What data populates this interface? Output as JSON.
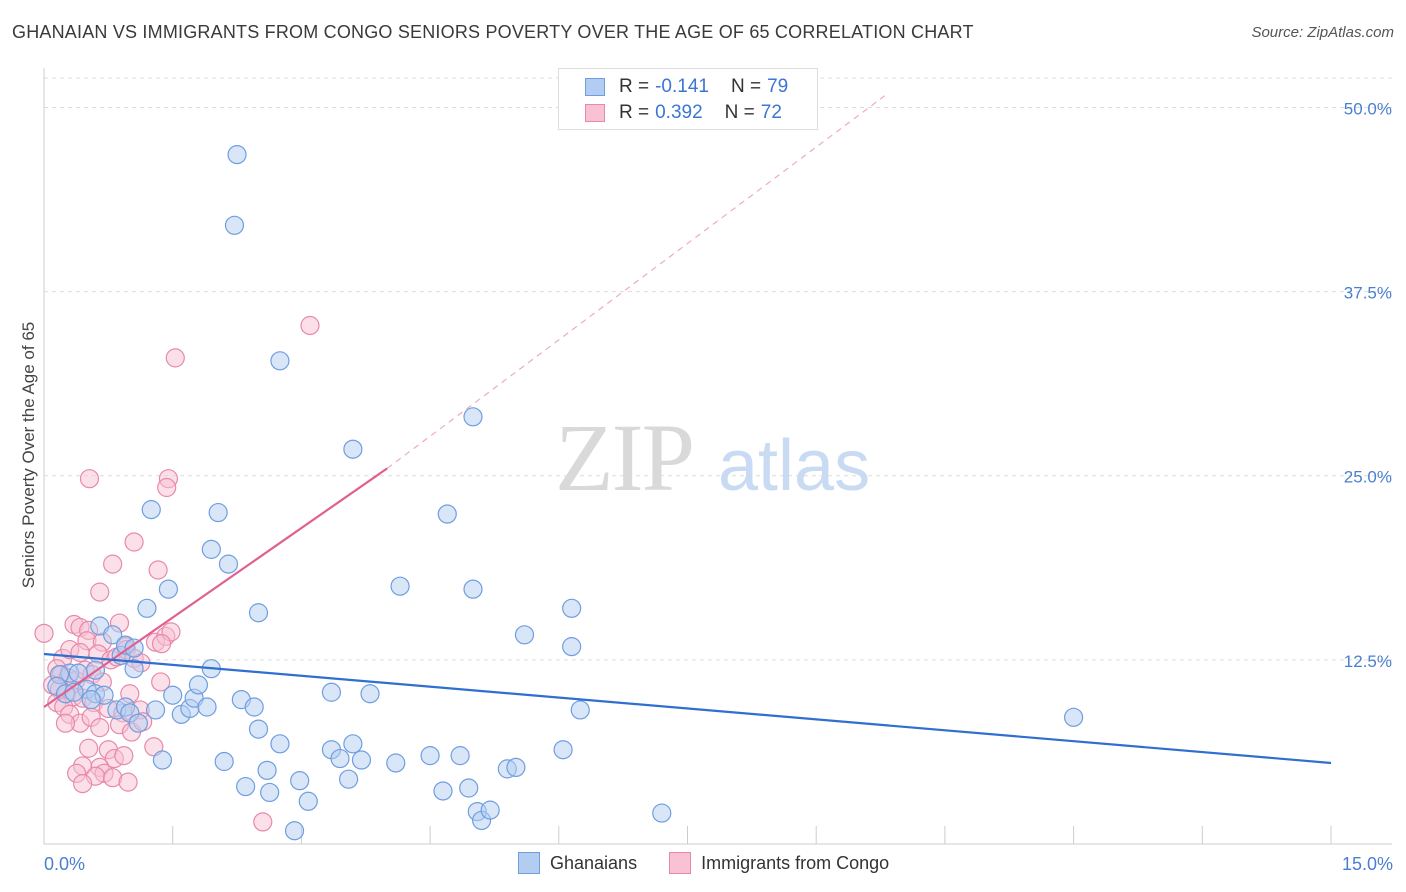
{
  "title": "GHANAIAN VS IMMIGRANTS FROM CONGO SENIORS POVERTY OVER THE AGE OF 65 CORRELATION CHART",
  "source": "Source: ZipAtlas.com",
  "watermark": {
    "zip": "ZIP",
    "atlas": "atlas"
  },
  "legend": {
    "rows": [
      {
        "r_label": "R =",
        "r_value": "-0.141",
        "n_label": "N =",
        "n_value": "79"
      },
      {
        "r_label": "R =",
        "r_value": "0.392",
        "n_label": "N =",
        "n_value": "72"
      }
    ]
  },
  "bottom_legend": {
    "series1": "Ghanaians",
    "series2": "Immigrants from Congo"
  },
  "colors": {
    "blue_fill": "#b3cdf2",
    "blue_stroke": "#6f9ee0",
    "blue_line": "#2f6fd0",
    "pink_fill": "#f8c2d4",
    "pink_stroke": "#e889aa",
    "pink_line": "#e06090",
    "tick_text": "#4a7fd0",
    "grid": "#dcdcdc"
  },
  "chart_data": {
    "type": "scatter",
    "title": "GHANAIAN VS IMMIGRANTS FROM CONGO SENIORS POVERTY OVER THE AGE OF 65 CORRELATION CHART",
    "xlabel": "",
    "ylabel": "Seniors Poverty Over the Age of 65",
    "xlim": [
      0,
      15
    ],
    "ylim": [
      0,
      52
    ],
    "x_tick_labels": [
      "0.0%",
      "15.0%"
    ],
    "y_ticks": [
      12.5,
      25.0,
      37.5,
      50.0
    ],
    "y_tick_labels": [
      "12.5%",
      "25.0%",
      "37.5%",
      "50.0%"
    ],
    "series": [
      {
        "name": "Ghanaians",
        "points": [
          [
            2.25,
            46.8
          ],
          [
            2.22,
            42.0
          ],
          [
            2.75,
            32.8
          ],
          [
            5.0,
            29.0
          ],
          [
            3.6,
            26.8
          ],
          [
            1.25,
            22.7
          ],
          [
            2.03,
            22.5
          ],
          [
            4.7,
            22.4
          ],
          [
            1.95,
            20.0
          ],
          [
            2.15,
            19.0
          ],
          [
            4.15,
            17.5
          ],
          [
            5.0,
            17.3
          ],
          [
            1.45,
            17.3
          ],
          [
            1.2,
            16.0
          ],
          [
            2.5,
            15.7
          ],
          [
            6.15,
            16.0
          ],
          [
            0.65,
            14.8
          ],
          [
            0.8,
            14.2
          ],
          [
            5.6,
            14.2
          ],
          [
            0.9,
            12.8
          ],
          [
            0.95,
            13.5
          ],
          [
            1.05,
            13.3
          ],
          [
            1.05,
            11.9
          ],
          [
            0.3,
            11.6
          ],
          [
            0.6,
            11.8
          ],
          [
            0.4,
            11.6
          ],
          [
            0.18,
            11.5
          ],
          [
            0.15,
            10.7
          ],
          [
            0.5,
            10.5
          ],
          [
            0.25,
            10.2
          ],
          [
            0.35,
            10.3
          ],
          [
            0.6,
            10.2
          ],
          [
            0.7,
            10.1
          ],
          [
            0.55,
            9.8
          ],
          [
            0.85,
            9.1
          ],
          [
            0.95,
            9.3
          ],
          [
            1.0,
            8.9
          ],
          [
            1.1,
            8.2
          ],
          [
            1.3,
            9.1
          ],
          [
            1.5,
            10.1
          ],
          [
            1.6,
            8.8
          ],
          [
            1.7,
            9.2
          ],
          [
            1.75,
            9.9
          ],
          [
            1.8,
            10.8
          ],
          [
            1.9,
            9.3
          ],
          [
            1.95,
            11.9
          ],
          [
            2.3,
            9.8
          ],
          [
            2.45,
            9.3
          ],
          [
            2.5,
            7.8
          ],
          [
            2.75,
            6.8
          ],
          [
            3.35,
            10.3
          ],
          [
            3.8,
            10.2
          ],
          [
            3.35,
            6.4
          ],
          [
            3.45,
            5.8
          ],
          [
            3.6,
            6.8
          ],
          [
            3.7,
            5.7
          ],
          [
            4.1,
            5.5
          ],
          [
            4.5,
            6.0
          ],
          [
            4.85,
            6.0
          ],
          [
            5.4,
            5.1
          ],
          [
            5.5,
            5.2
          ],
          [
            6.05,
            6.4
          ],
          [
            6.15,
            13.4
          ],
          [
            6.25,
            9.1
          ],
          [
            1.38,
            5.7
          ],
          [
            2.1,
            5.6
          ],
          [
            2.6,
            5.0
          ],
          [
            2.35,
            3.9
          ],
          [
            2.63,
            3.5
          ],
          [
            2.98,
            4.3
          ],
          [
            3.08,
            2.9
          ],
          [
            3.55,
            4.4
          ],
          [
            4.65,
            3.6
          ],
          [
            4.95,
            3.8
          ],
          [
            5.05,
            2.2
          ],
          [
            5.1,
            1.6
          ],
          [
            5.2,
            2.3
          ],
          [
            7.2,
            2.1
          ],
          [
            2.92,
            0.9
          ],
          [
            12.0,
            8.6
          ]
        ]
      },
      {
        "name": "Immigrants from Congo",
        "points": [
          [
            3.1,
            35.2
          ],
          [
            1.53,
            33.0
          ],
          [
            0.53,
            24.8
          ],
          [
            1.45,
            24.8
          ],
          [
            1.43,
            24.2
          ],
          [
            1.05,
            20.5
          ],
          [
            0.8,
            19.0
          ],
          [
            1.33,
            18.6
          ],
          [
            0.65,
            17.1
          ],
          [
            0.0,
            14.3
          ],
          [
            0.35,
            14.9
          ],
          [
            0.42,
            14.7
          ],
          [
            0.52,
            14.5
          ],
          [
            0.88,
            15.0
          ],
          [
            0.5,
            13.8
          ],
          [
            0.68,
            13.7
          ],
          [
            0.95,
            13.4
          ],
          [
            1.3,
            13.7
          ],
          [
            1.42,
            14.1
          ],
          [
            1.48,
            14.4
          ],
          [
            1.37,
            13.6
          ],
          [
            0.22,
            12.6
          ],
          [
            0.3,
            13.2
          ],
          [
            0.42,
            13.0
          ],
          [
            0.63,
            12.9
          ],
          [
            0.78,
            12.5
          ],
          [
            0.85,
            12.7
          ],
          [
            0.96,
            13.2
          ],
          [
            1.05,
            12.6
          ],
          [
            1.13,
            12.3
          ],
          [
            0.15,
            11.9
          ],
          [
            0.2,
            11.5
          ],
          [
            0.28,
            11.3
          ],
          [
            0.37,
            11.1
          ],
          [
            0.48,
            11.8
          ],
          [
            0.56,
            11.5
          ],
          [
            0.68,
            11.0
          ],
          [
            0.1,
            10.8
          ],
          [
            0.18,
            10.5
          ],
          [
            0.26,
            10.2
          ],
          [
            0.34,
            10.0
          ],
          [
            0.45,
            9.9
          ],
          [
            0.58,
            9.6
          ],
          [
            0.75,
            9.2
          ],
          [
            0.92,
            8.9
          ],
          [
            1.12,
            9.1
          ],
          [
            1.36,
            11.0
          ],
          [
            1.0,
            10.2
          ],
          [
            0.15,
            9.6
          ],
          [
            0.23,
            9.3
          ],
          [
            0.3,
            8.8
          ],
          [
            0.42,
            8.2
          ],
          [
            0.55,
            8.6
          ],
          [
            0.65,
            7.9
          ],
          [
            0.88,
            8.1
          ],
          [
            1.02,
            7.6
          ],
          [
            1.15,
            8.3
          ],
          [
            0.25,
            8.2
          ],
          [
            0.52,
            6.5
          ],
          [
            0.75,
            6.4
          ],
          [
            0.82,
            5.8
          ],
          [
            0.93,
            6.0
          ],
          [
            0.65,
            5.2
          ],
          [
            1.28,
            6.6
          ],
          [
            0.45,
            5.3
          ],
          [
            0.7,
            4.8
          ],
          [
            0.6,
            4.6
          ],
          [
            0.8,
            4.5
          ],
          [
            0.38,
            4.8
          ],
          [
            0.98,
            4.2
          ],
          [
            0.45,
            4.1
          ],
          [
            2.55,
            1.5
          ]
        ]
      }
    ],
    "trend_lines": [
      {
        "series": "Ghanaians",
        "x": [
          0,
          15
        ],
        "y": [
          12.9,
          5.5
        ]
      },
      {
        "series": "Immigrants from Congo",
        "x": [
          0,
          4.0
        ],
        "y": [
          9.3,
          25.5
        ]
      }
    ],
    "trend_extension": {
      "series": "Immigrants from Congo",
      "x": [
        4.0,
        9.8
      ],
      "y": [
        25.5,
        50.8
      ],
      "style": "dashed"
    }
  }
}
